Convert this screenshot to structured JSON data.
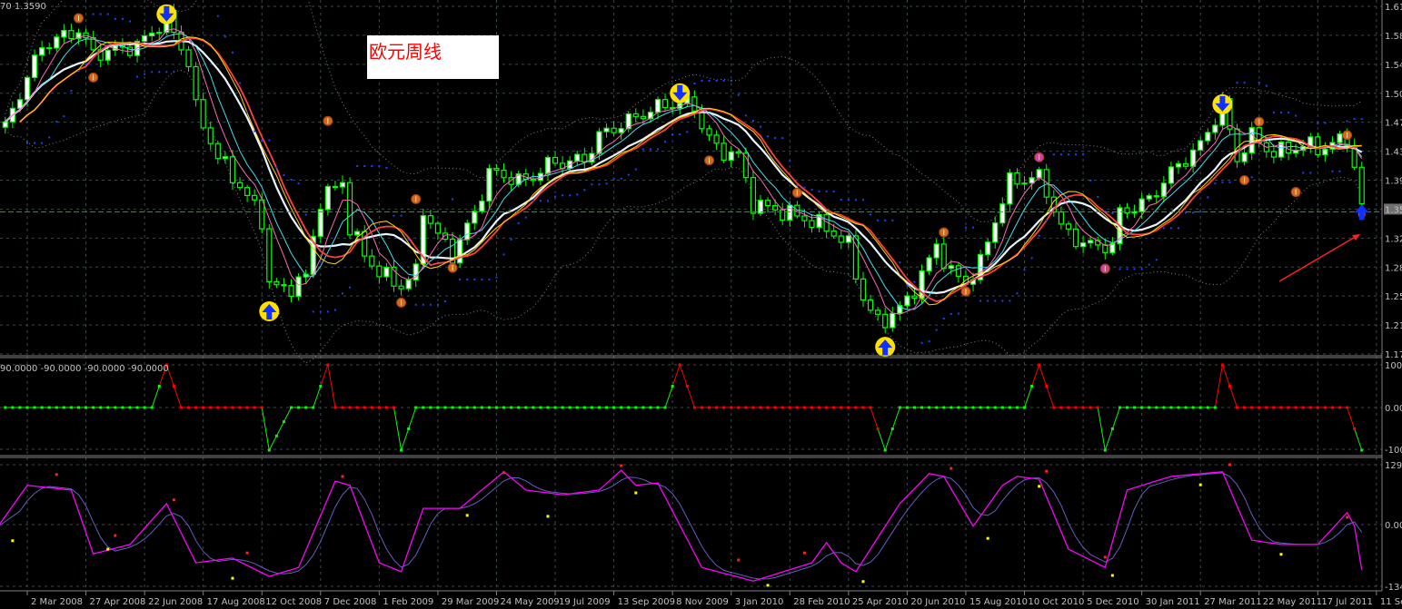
{
  "main_panel": {
    "header_text": "70 1.3590",
    "annotation_title": "欧元周线",
    "price_labels": [
      "1.61",
      "1.58",
      "1.54",
      "1.50",
      "1.47",
      "1.43",
      "1.39",
      "1.35",
      "1.32",
      "1.28",
      "1.25",
      "1.21",
      "1.17"
    ],
    "current_price_label": "1.35",
    "current_price_line": 1.35
  },
  "signal_panel": {
    "header_text": "90.0000 -90.0000 -90.0000 -90.0000",
    "axis_labels": [
      "100",
      "0.00",
      "-100"
    ]
  },
  "oscillator_panel": {
    "axis_labels": [
      "129.",
      "0.00",
      "-134"
    ]
  },
  "time_axis": {
    "labels": [
      "2 Mar 2008",
      "27 Apr 2008",
      "22 Jun 2008",
      "17 Aug 2008",
      "12 Oct 2008",
      "7 Dec 2008",
      "1 Feb 2009",
      "29 Mar 2009",
      "24 May 2009",
      "19 Jul 2009",
      "13 Sep 2009",
      "8 Nov 2009",
      "3 Jan 2010",
      "28 Feb 2010",
      "25 Apr 2010",
      "20 Jun 2010",
      "15 Aug 2010",
      "10 Oct 2010",
      "5 Dec 2010",
      "30 Jan 2011",
      "27 Mar 2011",
      "22 May 2011",
      "17 Jul 2011",
      "11 Sep 2011"
    ]
  },
  "colors": {
    "background": "#000000",
    "candle": "#00ff00",
    "grid": "#3a4a4a",
    "ma_red": "#ff4040",
    "ma_yellow": "#ffd700",
    "ma_pink": "#ff69b4",
    "ma_cyan": "#40e0f0",
    "ma_white": "#e8f4ff",
    "sar": "#2040ff",
    "signal_up": "#00ff00",
    "signal_down": "#ff0000",
    "osc_main": "#ff00ff",
    "osc_signal": "#6060c0",
    "title_text": "#ff0000"
  },
  "chart_data": [
    {
      "type": "candlestick",
      "timeframe": "weekly",
      "ylim": [
        1.17,
        1.61
      ],
      "grid": true,
      "close_anchors": [
        [
          "2008-02-10",
          1.457
        ],
        [
          "2008-02-24",
          1.5
        ],
        [
          "2008-03-16",
          1.56
        ],
        [
          "2008-04-20",
          1.58
        ],
        [
          "2008-05-04",
          1.55
        ],
        [
          "2008-06-15",
          1.56
        ],
        [
          "2008-07-13",
          1.595
        ],
        [
          "2008-08-03",
          1.54
        ],
        [
          "2008-08-10",
          1.48
        ],
        [
          "2008-08-31",
          1.42
        ],
        [
          "2008-09-28",
          1.37
        ],
        [
          "2008-10-12",
          1.34
        ],
        [
          "2008-10-19",
          1.26
        ],
        [
          "2008-11-02",
          1.25
        ],
        [
          "2008-11-23",
          1.268
        ],
        [
          "2008-12-07",
          1.365
        ],
        [
          "2008-12-28",
          1.388
        ],
        [
          "2009-01-04",
          1.33
        ],
        [
          "2009-01-18",
          1.296
        ],
        [
          "2009-02-01",
          1.273
        ],
        [
          "2009-02-22",
          1.256
        ],
        [
          "2009-03-08",
          1.273
        ],
        [
          "2009-03-15",
          1.354
        ],
        [
          "2009-03-29",
          1.32
        ],
        [
          "2009-04-12",
          1.296
        ],
        [
          "2009-05-03",
          1.348
        ],
        [
          "2009-05-17",
          1.4
        ],
        [
          "2009-06-21",
          1.388
        ],
        [
          "2009-07-12",
          1.41
        ],
        [
          "2009-08-16",
          1.416
        ],
        [
          "2009-08-30",
          1.446
        ],
        [
          "2009-10-04",
          1.47
        ],
        [
          "2009-11-01",
          1.486
        ],
        [
          "2009-11-29",
          1.486
        ],
        [
          "2009-12-06",
          1.457
        ],
        [
          "2009-12-20",
          1.43
        ],
        [
          "2010-01-10",
          1.42
        ],
        [
          "2010-01-24",
          1.36
        ],
        [
          "2010-02-21",
          1.35
        ],
        [
          "2010-03-07",
          1.345
        ],
        [
          "2010-04-04",
          1.33
        ],
        [
          "2010-04-25",
          1.307
        ],
        [
          "2010-05-09",
          1.24
        ],
        [
          "2010-05-23",
          1.21
        ],
        [
          "2010-06-06",
          1.22
        ],
        [
          "2010-06-20",
          1.237
        ],
        [
          "2010-07-04",
          1.27
        ],
        [
          "2010-07-18",
          1.307
        ],
        [
          "2010-08-01",
          1.273
        ],
        [
          "2010-08-15",
          1.26
        ],
        [
          "2010-08-29",
          1.285
        ],
        [
          "2010-09-12",
          1.34
        ],
        [
          "2010-09-26",
          1.388
        ],
        [
          "2010-10-24",
          1.394
        ],
        [
          "2010-10-31",
          1.376
        ],
        [
          "2010-11-14",
          1.33
        ],
        [
          "2010-11-28",
          1.315
        ],
        [
          "2010-12-12",
          1.307
        ],
        [
          "2011-01-02",
          1.307
        ],
        [
          "2011-01-09",
          1.348
        ],
        [
          "2011-02-06",
          1.365
        ],
        [
          "2011-02-27",
          1.4
        ],
        [
          "2011-03-27",
          1.434
        ],
        [
          "2011-04-17",
          1.486
        ],
        [
          "2011-05-01",
          1.417
        ],
        [
          "2011-05-15",
          1.446
        ],
        [
          "2011-06-05",
          1.423
        ],
        [
          "2011-06-19",
          1.43
        ],
        [
          "2011-07-10",
          1.434
        ],
        [
          "2011-07-24",
          1.43
        ],
        [
          "2011-08-14",
          1.446
        ],
        [
          "2011-08-28",
          1.36
        ]
      ],
      "markers": [
        {
          "kind": "sell-arrow",
          "date": "2008-07-13",
          "price": 1.6
        },
        {
          "kind": "sell-arrow",
          "date": "2009-11-15",
          "price": 1.5
        },
        {
          "kind": "sell-arrow",
          "date": "2011-04-17",
          "price": 1.486
        },
        {
          "kind": "buy-arrow",
          "date": "2008-10-19",
          "price": 1.224
        },
        {
          "kind": "buy-arrow",
          "date": "2010-05-30",
          "price": 1.179
        },
        {
          "kind": "buy-arrow-blue",
          "date": "2011-08-28",
          "price": 1.35
        },
        {
          "kind": "orange-dot",
          "date": "2008-04-20",
          "price": 1.595
        },
        {
          "kind": "orange-dot",
          "date": "2008-05-04",
          "price": 1.52
        },
        {
          "kind": "orange-dot",
          "date": "2008-12-14",
          "price": 1.465
        },
        {
          "kind": "orange-dot",
          "date": "2009-03-08",
          "price": 1.366
        },
        {
          "kind": "orange-dot",
          "date": "2009-02-22",
          "price": 1.235
        },
        {
          "kind": "orange-dot",
          "date": "2009-04-12",
          "price": 1.279
        },
        {
          "kind": "orange-dot",
          "date": "2009-12-13",
          "price": 1.415
        },
        {
          "kind": "orange-dot",
          "date": "2010-03-07",
          "price": 1.374
        },
        {
          "kind": "orange-dot",
          "date": "2010-07-25",
          "price": 1.324
        },
        {
          "kind": "orange-dot",
          "date": "2010-08-15",
          "price": 1.249
        },
        {
          "kind": "orange-dot",
          "date": "2011-05-08",
          "price": 1.39
        },
        {
          "kind": "orange-dot",
          "date": "2011-05-22",
          "price": 1.464
        },
        {
          "kind": "orange-dot",
          "date": "2011-06-26",
          "price": 1.375
        },
        {
          "kind": "orange-dot",
          "date": "2011-08-14",
          "price": 1.447
        },
        {
          "kind": "pink-dot",
          "date": "2010-10-24",
          "price": 1.419
        },
        {
          "kind": "pink-dot",
          "date": "2010-12-26",
          "price": 1.278
        }
      ]
    },
    {
      "type": "line",
      "panel": "signal",
      "ylim": [
        -100,
        100
      ],
      "anchors": [
        [
          "2008-06-29",
          0
        ],
        [
          "2008-07-13",
          100
        ],
        [
          "2008-07-27",
          0
        ],
        [
          "2008-10-12",
          0
        ],
        [
          "2008-10-19",
          -100
        ],
        [
          "2008-11-09",
          0
        ],
        [
          "2008-11-30",
          0
        ],
        [
          "2008-12-14",
          100
        ],
        [
          "2008-12-21",
          0
        ],
        [
          "2009-02-15",
          0
        ],
        [
          "2009-02-22",
          -100
        ],
        [
          "2009-03-08",
          0
        ],
        [
          "2009-11-01",
          0
        ],
        [
          "2009-11-15",
          100
        ],
        [
          "2009-11-29",
          0
        ],
        [
          "2010-05-16",
          0
        ],
        [
          "2010-05-30",
          -100
        ],
        [
          "2010-06-13",
          0
        ],
        [
          "2010-10-10",
          0
        ],
        [
          "2010-10-24",
          100
        ],
        [
          "2010-11-07",
          0
        ],
        [
          "2010-12-19",
          0
        ],
        [
          "2010-12-26",
          -100
        ],
        [
          "2011-01-09",
          0
        ],
        [
          "2011-04-10",
          0
        ],
        [
          "2011-04-17",
          100
        ],
        [
          "2011-05-01",
          0
        ],
        [
          "2011-08-14",
          0
        ],
        [
          "2011-08-28",
          -100
        ]
      ]
    },
    {
      "type": "line",
      "panel": "oscillator",
      "ylim": [
        -134,
        129
      ],
      "main_anchors": [
        [
          "2008-02-03",
          -3
        ],
        [
          "2008-03-02",
          85
        ],
        [
          "2008-04-13",
          75
        ],
        [
          "2008-05-04",
          -61
        ],
        [
          "2008-06-08",
          -41
        ],
        [
          "2008-07-13",
          46
        ],
        [
          "2008-08-10",
          -80
        ],
        [
          "2008-09-14",
          -70
        ],
        [
          "2008-10-19",
          -109
        ],
        [
          "2008-11-16",
          -90
        ],
        [
          "2008-12-21",
          94
        ],
        [
          "2009-01-04",
          85
        ],
        [
          "2009-02-01",
          -80
        ],
        [
          "2009-02-22",
          -99
        ],
        [
          "2009-03-15",
          36
        ],
        [
          "2009-04-19",
          36
        ],
        [
          "2009-05-31",
          114
        ],
        [
          "2009-06-21",
          75
        ],
        [
          "2009-07-26",
          65
        ],
        [
          "2009-08-30",
          75
        ],
        [
          "2009-09-20",
          117
        ],
        [
          "2009-10-04",
          85
        ],
        [
          "2009-10-25",
          90
        ],
        [
          "2009-12-06",
          -90
        ],
        [
          "2010-01-24",
          -119
        ],
        [
          "2010-03-21",
          -80
        ],
        [
          "2010-04-04",
          -37
        ],
        [
          "2010-04-18",
          -80
        ],
        [
          "2010-05-02",
          -99
        ],
        [
          "2010-06-13",
          46
        ],
        [
          "2010-07-11",
          110
        ],
        [
          "2010-07-25",
          104
        ],
        [
          "2010-08-22",
          -2
        ],
        [
          "2010-09-19",
          85
        ],
        [
          "2010-10-03",
          104
        ],
        [
          "2010-10-24",
          98
        ],
        [
          "2010-11-21",
          -51
        ],
        [
          "2010-12-26",
          -90
        ],
        [
          "2011-01-16",
          75
        ],
        [
          "2011-02-27",
          104
        ],
        [
          "2011-04-17",
          114
        ],
        [
          "2011-05-15",
          -32
        ],
        [
          "2011-06-12",
          -41
        ],
        [
          "2011-07-17",
          -41
        ],
        [
          "2011-08-14",
          27
        ],
        [
          "2011-08-21",
          -2
        ],
        [
          "2011-08-28",
          -95
        ]
      ],
      "red_dots": [
        [
          "2008-03-30",
          108
        ],
        [
          "2008-05-25",
          -22
        ],
        [
          "2008-07-20",
          54
        ],
        [
          "2008-09-28",
          -59
        ],
        [
          "2008-12-28",
          104
        ],
        [
          "2009-05-31",
          112
        ],
        [
          "2009-09-20",
          127
        ],
        [
          "2010-01-10",
          -74
        ],
        [
          "2010-03-14",
          -59
        ],
        [
          "2010-08-01",
          121
        ],
        [
          "2010-10-31",
          115
        ],
        [
          "2010-12-26",
          -68
        ],
        [
          "2011-04-24",
          129
        ],
        [
          "2011-08-14",
          17
        ]
      ],
      "yellow_dots": [
        [
          "2008-02-17",
          -33
        ],
        [
          "2008-05-18",
          -51
        ],
        [
          "2008-09-14",
          -113
        ],
        [
          "2009-04-26",
          21
        ],
        [
          "2009-07-12",
          19
        ],
        [
          "2009-10-04",
          69
        ],
        [
          "2010-02-07",
          -128
        ],
        [
          "2010-05-09",
          -120
        ],
        [
          "2010-09-05",
          -28
        ],
        [
          "2010-10-24",
          83
        ],
        [
          "2011-01-02",
          -107
        ],
        [
          "2011-03-27",
          86
        ],
        [
          "2011-06-12",
          -62
        ]
      ]
    }
  ]
}
